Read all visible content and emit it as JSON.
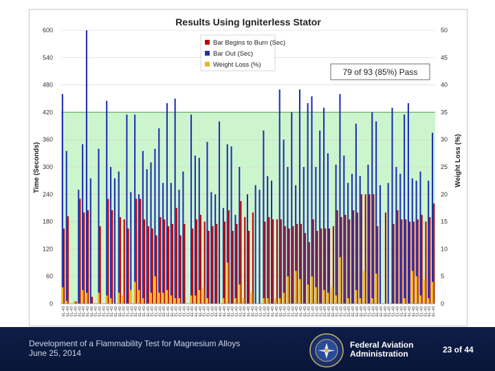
{
  "chart_data": {
    "type": "bar",
    "title": "Results Using Igniterless Stator",
    "ylabel_left": "Time (Seconds)",
    "ylabel_right": "Weight Loss (%)",
    "ylim_left": [
      0,
      600
    ],
    "ylim_right": [
      0,
      50
    ],
    "yticks_left": [
      "0",
      "60",
      "120",
      "180",
      "240",
      "300",
      "360",
      "420",
      "480",
      "540",
      "600"
    ],
    "yticks_right": [
      "0",
      "5",
      "10",
      "15",
      "20",
      "25",
      "30",
      "35",
      "40",
      "45",
      "50"
    ],
    "pass_band": [
      0,
      420
    ],
    "pass_band_color": "#cdf5cd",
    "annotation": "79 of 93 (85%) Pass",
    "legend_position": "top-center",
    "category_label": "EL-43",
    "category_count": 93,
    "series": [
      {
        "name": "Bar Begins to Burn (Sec)",
        "color": "#c00000",
        "axis": "left",
        "values": [
          165,
          192,
          0,
          5,
          230,
          200,
          205,
          15,
          0,
          170,
          0,
          230,
          205,
          0,
          190,
          185,
          165,
          0,
          230,
          230,
          185,
          170,
          165,
          150,
          190,
          185,
          170,
          175,
          210,
          150,
          175,
          0,
          165,
          185,
          195,
          180,
          160,
          170,
          175,
          0,
          180,
          205,
          160,
          175,
          225,
          190,
          160,
          200,
          0,
          0,
          180,
          190,
          185,
          185,
          185,
          170,
          165,
          170,
          175,
          175,
          155,
          135,
          185,
          160,
          165,
          165,
          165,
          170,
          205,
          190,
          195,
          185,
          205,
          200,
          240,
          240,
          240,
          240,
          170,
          0,
          200,
          0,
          175,
          205,
          185,
          185,
          180,
          180,
          185,
          195,
          180,
          190,
          220
        ]
      },
      {
        "name": "Bar Out (Sec)",
        "color": "#2030b0",
        "axis": "left",
        "values": [
          460,
          335,
          0,
          0,
          250,
          350,
          600,
          275,
          0,
          340,
          0,
          445,
          300,
          275,
          290,
          0,
          415,
          245,
          415,
          240,
          335,
          295,
          310,
          340,
          385,
          265,
          440,
          265,
          450,
          250,
          290,
          0,
          415,
          325,
          320,
          0,
          355,
          245,
          240,
          400,
          210,
          350,
          345,
          195,
          300,
          0,
          240,
          0,
          260,
          250,
          380,
          280,
          270,
          0,
          470,
          360,
          300,
          420,
          260,
          470,
          300,
          440,
          455,
          300,
          380,
          430,
          330,
          0,
          305,
          460,
          325,
          265,
          285,
          395,
          280,
          0,
          305,
          420,
          400,
          260,
          0,
          265,
          430,
          300,
          285,
          415,
          440,
          275,
          270,
          290,
          0,
          270,
          375
        ]
      },
      {
        "name": "Weight Loss (%)",
        "color": "#f0b420",
        "axis": "right",
        "values": [
          3,
          0.5,
          0,
          0.5,
          0,
          2.5,
          2,
          0,
          0,
          2,
          0,
          1.5,
          1,
          0,
          2,
          1.5,
          0,
          2.5,
          4,
          2.5,
          1,
          0,
          2,
          5,
          2,
          2,
          2.5,
          1.5,
          1,
          1,
          0,
          0,
          1.5,
          1.5,
          2.5,
          3,
          1,
          0,
          0,
          0,
          1,
          7.5,
          0,
          1,
          3.5,
          1,
          0,
          2,
          0,
          0,
          1,
          1,
          0,
          1,
          1,
          2,
          5,
          0,
          6,
          4.5,
          0,
          3.5,
          5,
          3,
          0,
          2.5,
          2,
          3,
          1.5,
          8.5,
          0,
          1,
          0,
          2.5,
          1,
          6,
          0,
          1,
          5.5,
          0,
          0,
          0,
          0,
          0,
          0,
          1,
          0,
          6,
          5,
          1.5,
          4.5,
          1,
          4
        ]
      }
    ]
  },
  "footer": {
    "title": "Development of a Flammability Test for Magnesium Alloys",
    "date": "June 25, 2014",
    "agency_line1": "Federal Aviation",
    "agency_line2": "Administration",
    "seal_text": "FEDERAL AVIATION ADMINISTRATION",
    "page": "23 of 44"
  },
  "colors": {
    "footer_bg": "#0c1a40",
    "grid": "#d0d0d0",
    "pass_line": "#6aaa6a"
  }
}
